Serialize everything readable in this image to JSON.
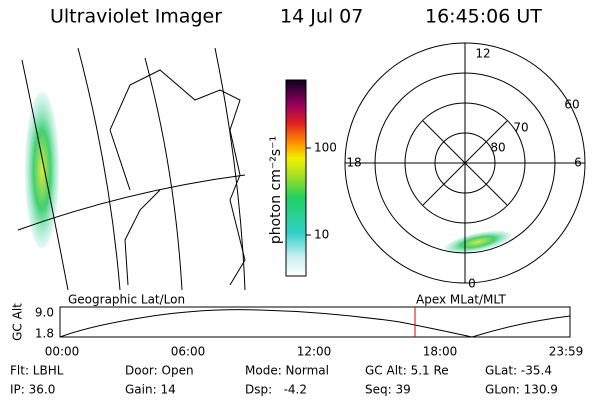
{
  "header": {
    "title": "Ultraviolet Imager",
    "date": "14 Jul 07",
    "time": "16:45:06 UT"
  },
  "colorbar": {
    "label": "photon cm⁻²s⁻¹",
    "ticks": [
      "100",
      "10"
    ]
  },
  "polar": {
    "mlt_labels": [
      "12",
      "18",
      "6",
      "0"
    ],
    "lat_labels": [
      "60",
      "70",
      "80"
    ]
  },
  "timeline": {
    "left_label": "Geographic Lat/Lon",
    "right_label": "Apex MLat/MLT",
    "y_label": "GC Alt",
    "y_ticks": [
      "9.0",
      "1.8"
    ],
    "x_ticks": [
      "00:00",
      "06:00",
      "12:00",
      "18:00",
      "23:59"
    ]
  },
  "footer": {
    "rows": [
      [
        "Flt: LBHL",
        "Door: Open",
        "Mode: Normal",
        "GC Alt: 5.1 Re",
        "GLat: -35.4"
      ],
      [
        "IP: 36.0",
        "Gain: 14",
        "Dsp:   -4.2",
        "Seq: 39",
        "GLon: 130.9"
      ]
    ]
  }
}
